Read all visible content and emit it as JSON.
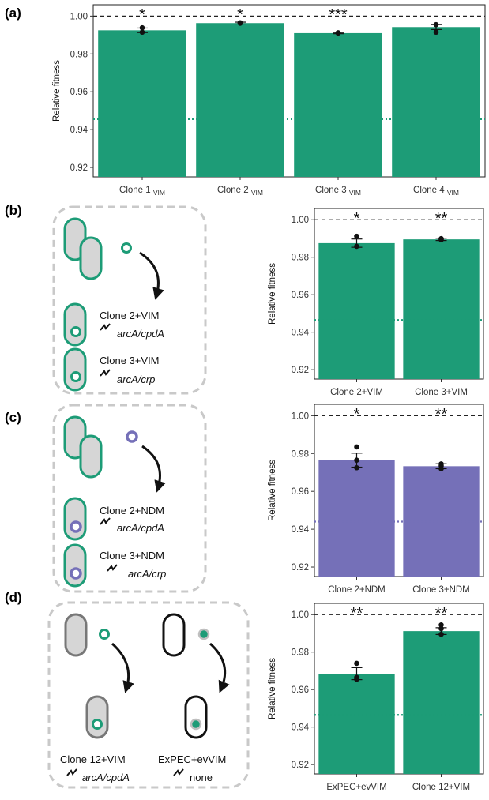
{
  "panels": {
    "a": "(a)",
    "b": "(b)",
    "c": "(c)",
    "d": "(d)"
  },
  "chart_data": [
    {
      "id": "a",
      "type": "bar",
      "ylabel": "Relative fitness",
      "ylim": [
        0.915,
        1.006
      ],
      "yticks": [
        "0.92",
        "0.94",
        "0.96",
        "0.98",
        "1.00"
      ],
      "categories": [
        "Clone 1VIM",
        "Clone 2VIM",
        "Clone 3VIM",
        "Clone 4VIM"
      ],
      "category_main": [
        "Clone 1",
        "Clone 2",
        "Clone 3",
        "Clone 4"
      ],
      "category_sub": [
        "VIM",
        "VIM",
        "VIM",
        "VIM"
      ],
      "values": [
        0.9925,
        0.9963,
        0.991,
        0.9942
      ],
      "errors": [
        0.0012,
        0.0005,
        0.0003,
        0.0013
      ],
      "points": [
        [
          0.9915,
          0.9938
        ],
        [
          0.9962,
          0.9965
        ],
        [
          0.991,
          0.9912
        ],
        [
          0.9955,
          0.9915
        ]
      ],
      "significance": [
        "*",
        "*",
        "***",
        ""
      ],
      "reference_line": 1.0,
      "ancestor_line": 0.9455,
      "color": "#1d9c77",
      "ancestor_color": "#1d9c77"
    },
    {
      "id": "b",
      "type": "bar",
      "ylabel": "Relative fitness",
      "ylim": [
        0.915,
        1.006
      ],
      "yticks": [
        "0.92",
        "0.94",
        "0.96",
        "0.98",
        "1.00"
      ],
      "categories": [
        "Clone 2+VIM",
        "Clone 3+VIM"
      ],
      "values": [
        0.9875,
        0.9895
      ],
      "errors": [
        0.0022,
        0.0006
      ],
      "points": [
        [
          0.9912,
          0.9858
        ],
        [
          0.9893,
          0.9899
        ]
      ],
      "significance": [
        "*",
        "**"
      ],
      "reference_line": 1.0,
      "ancestor_line": 0.9465,
      "color": "#1d9c77",
      "ancestor_color": "#1d9c77"
    },
    {
      "id": "c",
      "type": "bar",
      "ylabel": "Relative fitness",
      "ylim": [
        0.915,
        1.006
      ],
      "yticks": [
        "0.92",
        "0.94",
        "0.96",
        "0.98",
        "1.00"
      ],
      "categories": [
        "Clone 2+NDM",
        "Clone 3+NDM"
      ],
      "values": [
        0.9765,
        0.9733
      ],
      "errors": [
        0.0037,
        0.0013
      ],
      "points": [
        [
          0.9835,
          0.9765,
          0.9725
        ],
        [
          0.9745,
          0.9735,
          0.972
        ]
      ],
      "significance": [
        "*",
        "**"
      ],
      "reference_line": 1.0,
      "ancestor_line": 0.944,
      "color": "#7570b8",
      "ancestor_color": "#7570b8"
    },
    {
      "id": "d",
      "type": "bar",
      "ylabel": "Relative fitness",
      "ylim": [
        0.915,
        1.006
      ],
      "yticks": [
        "0.92",
        "0.94",
        "0.96",
        "0.98",
        "1.00"
      ],
      "categories": [
        "ExPEC+evVIM",
        "Clone 12+VIM"
      ],
      "values": [
        0.9685,
        0.9912
      ],
      "errors": [
        0.0032,
        0.0018
      ],
      "points": [
        [
          0.974,
          0.9665,
          0.9655
        ],
        [
          0.9945,
          0.9925,
          0.9895
        ]
      ],
      "significance": [
        "**",
        "**"
      ],
      "reference_line": 1.0,
      "ancestor_line": 0.9465,
      "color": "#1d9c77",
      "ancestor_color": "#1d9c77"
    }
  ],
  "diagrams": {
    "b": {
      "labels": [
        [
          "Clone 2+VIM",
          "arcA/cpdA"
        ],
        [
          "Clone 3+VIM",
          "arcA/crp"
        ]
      ]
    },
    "c": {
      "labels": [
        [
          "Clone 2+NDM",
          "arcA/cpdA"
        ],
        [
          "Clone 3+NDM",
          "arcA/crp"
        ]
      ]
    },
    "d": {
      "labels": [
        [
          "Clone 12+VIM",
          "arcA/cpdA"
        ],
        [
          "ExPEC+evVIM",
          "none"
        ]
      ]
    }
  },
  "colors": {
    "green": "#1d9c77",
    "purple": "#7570b8",
    "cell_fill": "#d6d6d6",
    "dash_box": "#c9c9c9"
  }
}
